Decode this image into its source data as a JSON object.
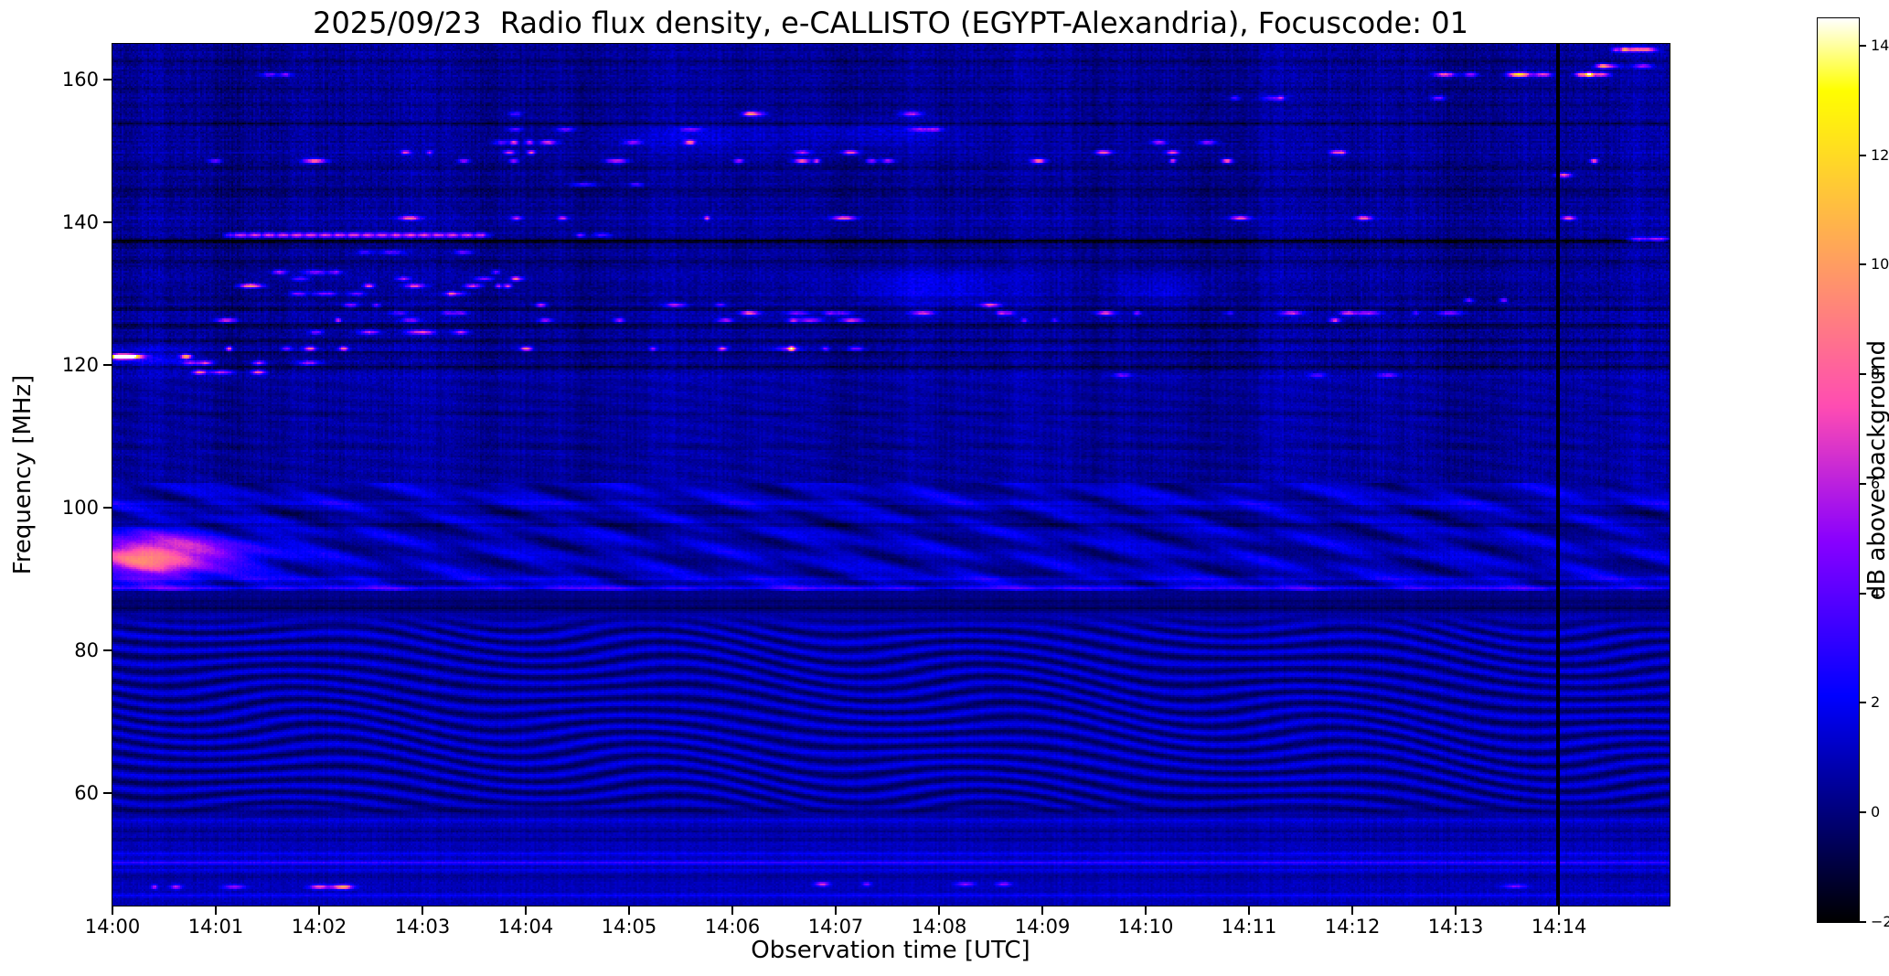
{
  "chart_data": {
    "type": "heatmap",
    "title": "2025/09/23  Radio flux density, e-CALLISTO (EGYPT-Alexandria), Focuscode: 01",
    "xlabel": "Observation time [UTC]",
    "ylabel": "Frequency [MHz]",
    "x_ticks": [
      "14:00",
      "14:01",
      "14:02",
      "14:03",
      "14:04",
      "14:05",
      "14:06",
      "14:07",
      "14:08",
      "14:09",
      "14:10",
      "14:11",
      "14:12",
      "14:13",
      "14:14"
    ],
    "x_range_minutes": [
      0,
      15.07
    ],
    "y_ticks": [
      160,
      140,
      120,
      100,
      80,
      60
    ],
    "y_range_mhz": [
      44.3,
      165.0
    ],
    "grid": false,
    "colormap": "gnuplot2",
    "colorbar": {
      "label": "dB above background",
      "ticks": [
        14,
        12,
        10,
        8,
        6,
        4,
        2,
        0,
        -2
      ],
      "range": [
        -2,
        14.5
      ]
    },
    "features": {
      "seed": 20250923,
      "background_db": 0.5,
      "upper_band_f0": 118.0,
      "vertical_line": {
        "t": 13.99,
        "halfwidth": 0.012,
        "db": -2
      },
      "streak": {
        "f": 138.2,
        "t0": 1.05,
        "t1": 3.7,
        "amp": 6.5
      },
      "fm_band": {
        "f0": 88.5,
        "f1": 103.5,
        "blob": {
          "t": 0.35,
          "f": 93.2,
          "t_sigma": 0.55,
          "f_sigma": 3.0,
          "amp": 7.5
        }
      },
      "wave_band": {
        "f0": 56.5,
        "f1": 85.3,
        "amp": 1.15
      },
      "dark_hlines": [
        {
          "f": 137.4,
          "db": -2.6
        },
        {
          "f": 136.5,
          "db": -0.7
        },
        {
          "f": 144.6,
          "db": -1.0
        },
        {
          "f": 143.8,
          "db": -0.6
        },
        {
          "f": 153.8,
          "db": -1.1
        },
        {
          "f": 147.5,
          "db": -0.7
        },
        {
          "f": 158.7,
          "db": -0.7
        },
        {
          "f": 162.6,
          "db": -0.6
        },
        {
          "f": 156.3,
          "db": -0.5
        },
        {
          "f": 134.5,
          "db": -0.7
        },
        {
          "f": 129.4,
          "db": -0.8
        },
        {
          "f": 127.9,
          "db": -1.1
        },
        {
          "f": 125.5,
          "db": -1.3
        },
        {
          "f": 123.4,
          "db": -0.9
        },
        {
          "f": 121.7,
          "db": -0.8
        },
        {
          "f": 119.7,
          "db": -1.4
        },
        {
          "f": 113.2,
          "db": -0.5
        },
        {
          "f": 108.6,
          "db": -0.5
        },
        {
          "f": 86.0,
          "db": -0.9
        },
        {
          "f": 87.0,
          "db": -0.6
        },
        {
          "f": 97.6,
          "db": -0.8
        },
        {
          "f": 99.3,
          "db": -0.6
        },
        {
          "f": 57.6,
          "db": -0.8
        },
        {
          "f": 54.8,
          "db": -0.7
        },
        {
          "f": 53.6,
          "db": -0.6
        },
        {
          "f": 48.4,
          "db": -0.6
        }
      ],
      "bright_hlines": [
        {
          "f": 88.8,
          "db": 2.0
        },
        {
          "f": 90.1,
          "db": 0.9
        },
        {
          "f": 100.7,
          "db": 0.8
        },
        {
          "f": 118.3,
          "db": 0.5
        },
        {
          "f": 50.3,
          "db": 2.0
        },
        {
          "f": 51.6,
          "db": 1.1
        },
        {
          "f": 49.2,
          "db": 0.7
        },
        {
          "f": 45.7,
          "db": 1.2
        },
        {
          "f": 56.2,
          "db": 0.6
        },
        {
          "f": 149.9,
          "db": 0.5
        },
        {
          "f": 127.3,
          "db": 0.5
        },
        {
          "f": 140.6,
          "db": 0.4
        },
        {
          "f": 122.3,
          "db": 0.4
        },
        {
          "f": 126.3,
          "db": 0.3
        }
      ],
      "blue_patches": [
        {
          "t": 7.9,
          "f": 130.8,
          "st": 0.9,
          "sf": 2.6,
          "amp": 1.5
        },
        {
          "t": 10.15,
          "f": 130.5,
          "st": 0.5,
          "sf": 2.0,
          "amp": 1.2
        },
        {
          "t": 0.35,
          "f": 120.9,
          "st": 0.5,
          "sf": 1.6,
          "amp": 1.6
        },
        {
          "t": 5.6,
          "f": 152.0,
          "st": 0.8,
          "sf": 1.6,
          "amp": 1.0
        },
        {
          "t": 7.4,
          "f": 152.5,
          "st": 0.8,
          "sf": 1.8,
          "amp": 1.1
        },
        {
          "t": 1.05,
          "f": 93.5,
          "st": 0.7,
          "sf": 2.6,
          "amp": 2.2
        }
      ],
      "rfi_rows": [
        {
          "f": 164.2,
          "n": 4,
          "t0": 14.3,
          "t1": 15.02,
          "amp": [
            4,
            8
          ]
        },
        {
          "f": 161.9,
          "n": 3,
          "t0": 13.5,
          "t1": 14.9,
          "amp": [
            4,
            7
          ]
        },
        {
          "f": 160.7,
          "n": 9,
          "t0": 12.7,
          "t1": 14.45,
          "amp": [
            5,
            9
          ]
        },
        {
          "f": 160.7,
          "n": 2,
          "t0": 1.4,
          "t1": 2.0,
          "amp": [
            4,
            6
          ]
        },
        {
          "f": 157.4,
          "n": 4,
          "t0": 10.8,
          "t1": 13.2,
          "amp": [
            3,
            5
          ]
        },
        {
          "f": 155.2,
          "n": 4,
          "t0": 2.2,
          "t1": 9.5,
          "amp": [
            3,
            6
          ]
        },
        {
          "f": 153.0,
          "n": 5,
          "t0": 3.5,
          "t1": 9.5,
          "amp": [
            3,
            6
          ]
        },
        {
          "f": 151.2,
          "n": 6,
          "t0": 3.6,
          "t1": 6.8,
          "amp": [
            4,
            9
          ]
        },
        {
          "f": 151.2,
          "n": 2,
          "t0": 10.0,
          "t1": 10.8,
          "amp": [
            4,
            6
          ]
        },
        {
          "f": 149.8,
          "n": 10,
          "t0": 2.8,
          "t1": 13.6,
          "amp": [
            4,
            8
          ]
        },
        {
          "f": 148.6,
          "n": 14,
          "t0": 0.3,
          "t1": 14.4,
          "amp": [
            4,
            9
          ]
        },
        {
          "f": 146.6,
          "n": 1,
          "t0": 13.9,
          "t1": 14.05,
          "amp": [
            7,
            9
          ]
        },
        {
          "f": 145.3,
          "n": 2,
          "t0": 4.3,
          "t1": 5.3,
          "amp": [
            3,
            5
          ]
        },
        {
          "f": 140.6,
          "n": 8,
          "t0": 2.2,
          "t1": 14.2,
          "amp": [
            5,
            8
          ]
        },
        {
          "f": 138.2,
          "n": 2,
          "t0": 4.4,
          "t1": 5.6,
          "amp": [
            3,
            5
          ]
        },
        {
          "f": 137.6,
          "n": 2,
          "t0": 14.55,
          "t1": 15.0,
          "amp": [
            5,
            7
          ]
        },
        {
          "f": 135.8,
          "n": 3,
          "t0": 1.8,
          "t1": 4.2,
          "amp": [
            3,
            5
          ]
        },
        {
          "f": 133.0,
          "n": 4,
          "t0": 1.6,
          "t1": 4.2,
          "amp": [
            3,
            6
          ]
        },
        {
          "f": 132.1,
          "n": 5,
          "t0": 1.4,
          "t1": 4.5,
          "amp": [
            3,
            6
          ]
        },
        {
          "f": 131.1,
          "n": 7,
          "t0": 1.2,
          "t1": 4.0,
          "amp": [
            4,
            7
          ]
        },
        {
          "f": 130.0,
          "n": 5,
          "t0": 1.0,
          "t1": 3.6,
          "amp": [
            3,
            6
          ]
        },
        {
          "f": 129.1,
          "n": 2,
          "t0": 12.9,
          "t1": 13.6,
          "amp": [
            4,
            6
          ]
        },
        {
          "f": 128.4,
          "n": 6,
          "t0": 1.0,
          "t1": 8.6,
          "amp": [
            3,
            7
          ]
        },
        {
          "f": 127.3,
          "n": 18,
          "t0": 0.05,
          "t1": 14.6,
          "amp": [
            3,
            8
          ]
        },
        {
          "f": 126.3,
          "n": 12,
          "t0": 0.3,
          "t1": 14.2,
          "amp": [
            3,
            7
          ]
        },
        {
          "f": 124.6,
          "n": 5,
          "t0": 1.5,
          "t1": 3.6,
          "amp": [
            3,
            6
          ]
        },
        {
          "f": 122.3,
          "n": 10,
          "t0": 0.3,
          "t1": 7.2,
          "amp": [
            4,
            9
          ]
        },
        {
          "f": 122.3,
          "n": 1,
          "t0": 6.5,
          "t1": 6.7,
          "amp": [
            12,
            13
          ]
        },
        {
          "f": 121.2,
          "n": 5,
          "t0": 0.02,
          "t1": 0.75,
          "amp": [
            9,
            13
          ]
        },
        {
          "f": 120.3,
          "n": 4,
          "t0": 0.1,
          "t1": 2.2,
          "amp": [
            4,
            7
          ]
        },
        {
          "f": 119.0,
          "n": 3,
          "t0": 0.6,
          "t1": 1.6,
          "amp": [
            5,
            8
          ]
        },
        {
          "f": 118.6,
          "n": 3,
          "t0": 9.0,
          "t1": 12.5,
          "amp": [
            3,
            5
          ]
        },
        {
          "f": 46.9,
          "n": 6,
          "t0": 0.15,
          "t1": 2.3,
          "amp": [
            4,
            7
          ]
        },
        {
          "f": 47.3,
          "n": 4,
          "t0": 6.3,
          "t1": 8.7,
          "amp": [
            3,
            6
          ]
        },
        {
          "f": 47.0,
          "n": 1,
          "t0": 13.4,
          "t1": 13.6,
          "amp": [
            3,
            4
          ]
        }
      ]
    }
  }
}
